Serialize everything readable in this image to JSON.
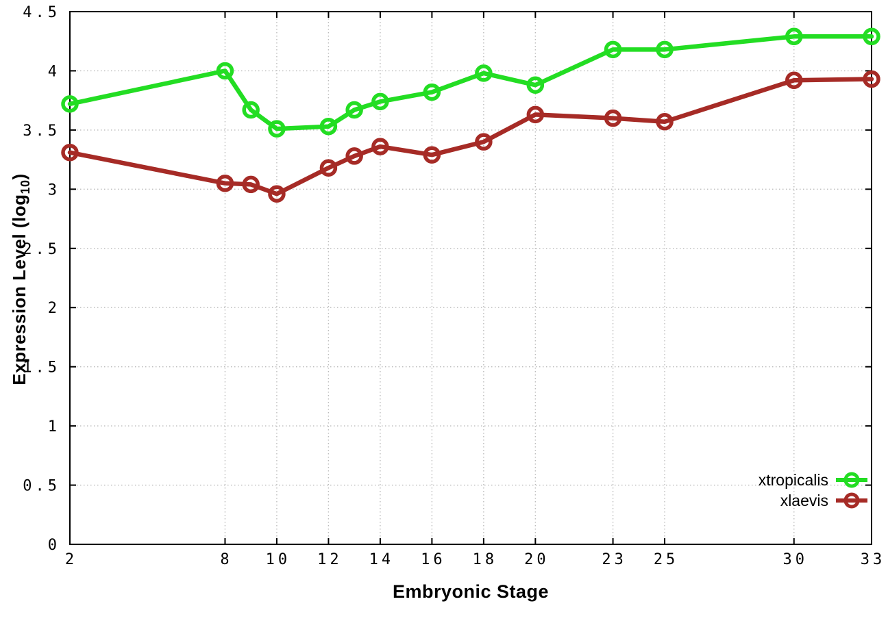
{
  "chart_data": {
    "type": "line",
    "title": "",
    "xlabel": "Embryonic Stage",
    "ylabel_main": "Expression Level (log",
    "ylabel_sub": "10",
    "ylabel_end": ")",
    "x": [
      2,
      8,
      9,
      10,
      12,
      13,
      14,
      16,
      18,
      20,
      23,
      25,
      30,
      33
    ],
    "series": [
      {
        "name": "xtropicalis",
        "color": "#23dd23",
        "values": [
          3.72,
          4.0,
          3.67,
          3.51,
          3.53,
          3.67,
          3.74,
          3.82,
          3.98,
          3.88,
          4.18,
          4.18,
          4.29,
          4.29
        ]
      },
      {
        "name": "xlaevis",
        "color": "#a62b26",
        "values": [
          3.31,
          3.05,
          3.04,
          2.96,
          3.18,
          3.28,
          3.36,
          3.29,
          3.4,
          3.63,
          3.6,
          3.57,
          3.92,
          3.93
        ]
      }
    ],
    "xticks": [
      2,
      8,
      10,
      12,
      14,
      16,
      18,
      20,
      23,
      25,
      30,
      33
    ],
    "yticks": [
      0,
      0.5,
      1,
      1.5,
      2,
      2.5,
      3,
      3.5,
      4,
      4.5
    ],
    "xlim": [
      2,
      33
    ],
    "ylim": [
      0,
      4.5
    ],
    "grid": true,
    "legend_position": "bottom-right",
    "colors": {
      "grid": "#bbbbbb",
      "axis": "#000000",
      "background": "#ffffff"
    }
  }
}
